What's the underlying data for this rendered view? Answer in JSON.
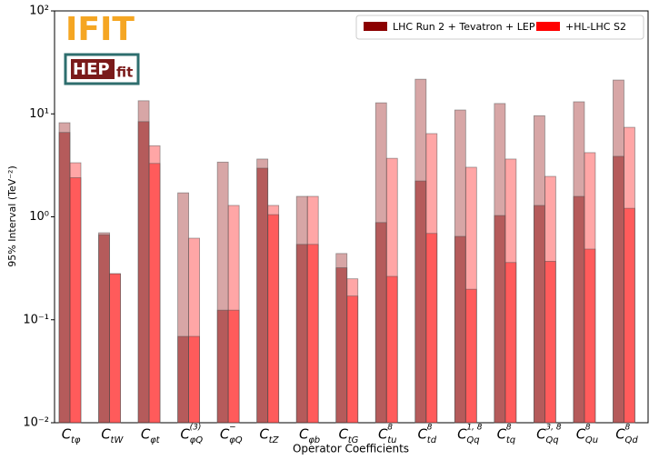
{
  "chart_data": {
    "type": "bar",
    "log_scale": true,
    "y_label": "95% Interval (TeV⁻²)",
    "x_label": "Operator Coefficients",
    "logos": {
      "ifit": "IFIT",
      "hepfit_main": "HEP",
      "hepfit_sub": "fit"
    },
    "legend": "upper right",
    "categories": [
      {
        "symbol": "C",
        "sub": "tφ"
      },
      {
        "symbol": "C",
        "sub": "tW"
      },
      {
        "symbol": "C",
        "sub": "φt"
      },
      {
        "symbol": "C",
        "sub": "φQ",
        "sup": "(3)"
      },
      {
        "symbol": "C",
        "sub": "φQ",
        "sup": "−"
      },
      {
        "symbol": "C",
        "sub": "tZ"
      },
      {
        "symbol": "C",
        "sub": "φb"
      },
      {
        "symbol": "C",
        "sub": "tG"
      },
      {
        "symbol": "C",
        "sub": "tu",
        "sup": "8"
      },
      {
        "symbol": "C",
        "sub": "td",
        "sup": "8"
      },
      {
        "symbol": "C",
        "sub": "Qq",
        "sup": "1, 8"
      },
      {
        "symbol": "C",
        "sub": "tq",
        "sup": "8"
      },
      {
        "symbol": "C",
        "sub": "Qq",
        "sup": "3, 8"
      },
      {
        "symbol": "C",
        "sub": "Qu",
        "sup": "8"
      },
      {
        "symbol": "C",
        "sub": "Qd",
        "sup": "8"
      }
    ],
    "series": [
      {
        "name": "LHC Run 2 + Tevatron + LEP",
        "color": "#8b0000",
        "values": [
          8.2,
          0.7,
          13.4,
          1.71,
          3.4,
          3.64,
          1.58,
          0.44,
          12.8,
          21.7,
          10.9,
          12.6,
          9.6,
          13.1,
          21.3
        ],
        "individual_values": [
          6.6,
          0.67,
          8.4,
          0.069,
          0.124,
          2.97,
          0.54,
          0.32,
          0.88,
          2.23,
          0.646,
          1.03,
          1.29,
          1.58,
          3.87
        ]
      },
      {
        "name": "+HL-LHC S2",
        "color": "#ff0000",
        "values": [
          3.35,
          0.28,
          4.9,
          0.62,
          1.29,
          1.29,
          1.58,
          0.25,
          3.7,
          6.43,
          3.03,
          3.64,
          2.47,
          4.2,
          7.4
        ],
        "individual_values": [
          2.4,
          0.28,
          3.3,
          0.069,
          0.124,
          1.05,
          0.54,
          0.17,
          0.264,
          0.69,
          0.198,
          0.36,
          0.37,
          0.486,
          1.21
        ]
      }
    ],
    "ylim": [
      0.01,
      100
    ],
    "yticks": [
      {
        "value": 0.01,
        "label": "10⁻²"
      },
      {
        "value": 0.1,
        "label": "10⁻¹"
      },
      {
        "value": 1,
        "label": "10⁰"
      },
      {
        "value": 10,
        "label": "10¹"
      },
      {
        "value": 100,
        "label": "10²"
      }
    ]
  }
}
